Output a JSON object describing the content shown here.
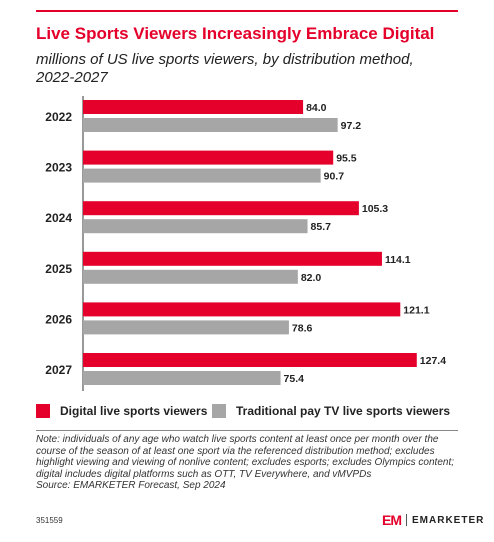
{
  "header": {
    "title": "Live Sports Viewers Increasingly Embrace Digital",
    "subtitle": "millions of US live sports viewers, by distribution method, 2022-2027"
  },
  "colors": {
    "accent": "#e4002b",
    "digital": "#e4002b",
    "traditional": "#a6a6a6"
  },
  "chart_data": {
    "type": "bar",
    "orientation": "horizontal",
    "categories": [
      "2022",
      "2023",
      "2024",
      "2025",
      "2026",
      "2027"
    ],
    "series": [
      {
        "name": "Digital live sports viewers",
        "values": [
          84.0,
          95.5,
          105.3,
          114.1,
          121.1,
          127.4
        ]
      },
      {
        "name": "Traditional pay TV live sports viewers",
        "values": [
          97.2,
          90.7,
          85.7,
          82.0,
          78.6,
          75.4
        ]
      }
    ],
    "value_labels": {
      "digital": [
        "84.0",
        "95.5",
        "105.3",
        "114.1",
        "121.1",
        "127.4"
      ],
      "traditional": [
        "97.2",
        "90.7",
        "85.7",
        "82.0",
        "78.6",
        "75.4"
      ]
    },
    "xlim": [
      0,
      145
    ],
    "grid": false,
    "legend_position": "bottom"
  },
  "legend": {
    "digital_label": "Digital live sports viewers",
    "traditional_label": "Traditional pay TV live sports viewers"
  },
  "footer": {
    "note": "Note: individuals of any age who watch live sports content at least once per month over the course of the season of at least one sport via the referenced distribution method; excludes highlight viewing and viewing of nonlive content; excludes esports; excludes Olympics content; digital includes digital platforms such as OTT, TV Everywhere, and vMVPDs",
    "source": "Source: EMARKETER Forecast, Sep 2024",
    "chart_id": "351559",
    "brand_mark": "EM",
    "brand_name": "EMARKETER"
  }
}
